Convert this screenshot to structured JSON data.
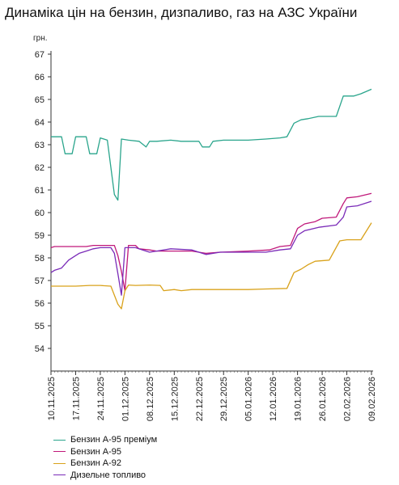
{
  "title": "Динаміка цін на бензин, дизпаливо, газ на АЗС України",
  "chart_data": {
    "type": "line",
    "title": "Динаміка цін на бензин, дизпаливо, газ на АЗС України",
    "ylabel": "грн.",
    "xlabel": "",
    "ylim": [
      53,
      67
    ],
    "yticks": [
      54,
      55,
      56,
      57,
      58,
      59,
      60,
      61,
      62,
      63,
      64,
      65,
      66,
      67
    ],
    "grid": false,
    "legend_position": "bottom-left",
    "xlim": [
      "2025-11-10",
      "2026-02-09"
    ],
    "xticks": [
      "10.11.2025",
      "17.11.2025",
      "24.11.2025",
      "01.12.2025",
      "08.12.2025",
      "15.12.2025",
      "22.12.2025",
      "29.12.2025",
      "05.01.2026",
      "12.01.2026",
      "19.01.2026",
      "26.01.2026",
      "02.02.2026",
      "09.02.2026"
    ],
    "xtick_dates": [
      "2025-11-10",
      "2025-11-17",
      "2025-11-24",
      "2025-12-01",
      "2025-12-08",
      "2025-12-15",
      "2025-12-22",
      "2025-12-29",
      "2026-01-05",
      "2026-01-12",
      "2026-01-19",
      "2026-01-26",
      "2026-02-02",
      "2026-02-09"
    ],
    "series": [
      {
        "name": "Бензин А-95 преміум",
        "color": "#2aa58c",
        "points": [
          [
            "2025-11-10",
            63.35
          ],
          [
            "2025-11-13",
            63.35
          ],
          [
            "2025-11-14",
            62.6
          ],
          [
            "2025-11-16",
            62.6
          ],
          [
            "2025-11-17",
            63.35
          ],
          [
            "2025-11-20",
            63.35
          ],
          [
            "2025-11-21",
            62.6
          ],
          [
            "2025-11-23",
            62.6
          ],
          [
            "2025-11-24",
            63.3
          ],
          [
            "2025-11-26",
            63.2
          ],
          [
            "2025-11-27",
            62.0
          ],
          [
            "2025-11-28",
            60.8
          ],
          [
            "2025-11-29",
            60.55
          ],
          [
            "2025-11-30",
            63.25
          ],
          [
            "2025-12-02",
            63.2
          ],
          [
            "2025-12-05",
            63.15
          ],
          [
            "2025-12-07",
            62.9
          ],
          [
            "2025-12-08",
            63.15
          ],
          [
            "2025-12-10",
            63.15
          ],
          [
            "2025-12-14",
            63.2
          ],
          [
            "2025-12-17",
            63.15
          ],
          [
            "2025-12-22",
            63.15
          ],
          [
            "2025-12-23",
            62.9
          ],
          [
            "2025-12-25",
            62.9
          ],
          [
            "2025-12-26",
            63.15
          ],
          [
            "2025-12-29",
            63.2
          ],
          [
            "2026-01-05",
            63.2
          ],
          [
            "2026-01-10",
            63.25
          ],
          [
            "2026-01-14",
            63.3
          ],
          [
            "2026-01-16",
            63.35
          ],
          [
            "2026-01-18",
            63.95
          ],
          [
            "2026-01-20",
            64.1
          ],
          [
            "2026-01-22",
            64.15
          ],
          [
            "2026-01-25",
            64.25
          ],
          [
            "2026-01-30",
            64.25
          ],
          [
            "2026-02-01",
            65.15
          ],
          [
            "2026-02-04",
            65.15
          ],
          [
            "2026-02-06",
            65.25
          ],
          [
            "2026-02-09",
            65.45
          ]
        ]
      },
      {
        "name": "Бензин А-95",
        "color": "#c0187a",
        "points": [
          [
            "2025-11-10",
            58.45
          ],
          [
            "2025-11-11",
            58.5
          ],
          [
            "2025-11-20",
            58.5
          ],
          [
            "2025-11-22",
            58.55
          ],
          [
            "2025-11-28",
            58.55
          ],
          [
            "2025-11-29",
            58.1
          ],
          [
            "2025-11-30",
            57.4
          ],
          [
            "2025-12-01",
            56.55
          ],
          [
            "2025-12-02",
            58.55
          ],
          [
            "2025-12-04",
            58.55
          ],
          [
            "2025-12-05",
            58.4
          ],
          [
            "2025-12-08",
            58.35
          ],
          [
            "2025-12-10",
            58.3
          ],
          [
            "2025-12-20",
            58.3
          ],
          [
            "2025-12-24",
            58.2
          ],
          [
            "2025-12-28",
            58.25
          ],
          [
            "2026-01-05",
            58.3
          ],
          [
            "2026-01-11",
            58.35
          ],
          [
            "2026-01-14",
            58.5
          ],
          [
            "2026-01-17",
            58.55
          ],
          [
            "2026-01-19",
            59.3
          ],
          [
            "2026-01-21",
            59.5
          ],
          [
            "2026-01-24",
            59.6
          ],
          [
            "2026-01-26",
            59.75
          ],
          [
            "2026-01-30",
            59.8
          ],
          [
            "2026-02-01",
            60.4
          ],
          [
            "2026-02-02",
            60.65
          ],
          [
            "2026-02-05",
            60.7
          ],
          [
            "2026-02-09",
            60.85
          ]
        ]
      },
      {
        "name": "Бензин А-92",
        "color": "#d9a21b",
        "points": [
          [
            "2025-11-10",
            56.75
          ],
          [
            "2025-11-14",
            56.75
          ],
          [
            "2025-11-17",
            56.75
          ],
          [
            "2025-11-21",
            56.78
          ],
          [
            "2025-11-24",
            56.78
          ],
          [
            "2025-11-27",
            56.75
          ],
          [
            "2025-11-29",
            55.95
          ],
          [
            "2025-11-30",
            55.75
          ],
          [
            "2025-12-01",
            56.55
          ],
          [
            "2025-12-02",
            56.8
          ],
          [
            "2025-12-04",
            56.78
          ],
          [
            "2025-12-08",
            56.8
          ],
          [
            "2025-12-11",
            56.78
          ],
          [
            "2025-12-12",
            56.55
          ],
          [
            "2025-12-15",
            56.6
          ],
          [
            "2025-12-17",
            56.55
          ],
          [
            "2025-12-20",
            56.6
          ],
          [
            "2025-12-28",
            56.6
          ],
          [
            "2026-01-05",
            56.6
          ],
          [
            "2026-01-09",
            56.62
          ],
          [
            "2026-01-16",
            56.65
          ],
          [
            "2026-01-18",
            57.35
          ],
          [
            "2026-01-20",
            57.5
          ],
          [
            "2026-01-22",
            57.7
          ],
          [
            "2026-01-24",
            57.85
          ],
          [
            "2026-01-28",
            57.9
          ],
          [
            "2026-01-31",
            58.75
          ],
          [
            "2026-02-02",
            58.8
          ],
          [
            "2026-02-06",
            58.8
          ],
          [
            "2026-02-09",
            59.55
          ]
        ]
      },
      {
        "name": "Дизельне топливо",
        "color": "#7a2bb8",
        "points": [
          [
            "2025-11-10",
            57.35
          ],
          [
            "2025-11-11",
            57.45
          ],
          [
            "2025-11-13",
            57.55
          ],
          [
            "2025-11-15",
            57.9
          ],
          [
            "2025-11-17",
            58.1
          ],
          [
            "2025-11-18",
            58.2
          ],
          [
            "2025-11-20",
            58.3
          ],
          [
            "2025-11-22",
            58.4
          ],
          [
            "2025-11-24",
            58.45
          ],
          [
            "2025-11-27",
            58.45
          ],
          [
            "2025-11-28",
            58.2
          ],
          [
            "2025-11-29",
            57.3
          ],
          [
            "2025-11-30",
            56.35
          ],
          [
            "2025-12-01",
            58.45
          ],
          [
            "2025-12-04",
            58.45
          ],
          [
            "2025-12-06",
            58.35
          ],
          [
            "2025-12-08",
            58.25
          ],
          [
            "2025-12-10",
            58.3
          ],
          [
            "2025-12-14",
            58.4
          ],
          [
            "2025-12-20",
            58.35
          ],
          [
            "2025-12-24",
            58.15
          ],
          [
            "2025-12-28",
            58.25
          ],
          [
            "2026-01-04",
            58.25
          ],
          [
            "2026-01-10",
            58.25
          ],
          [
            "2026-01-14",
            58.35
          ],
          [
            "2026-01-17",
            58.4
          ],
          [
            "2026-01-19",
            59.0
          ],
          [
            "2026-01-21",
            59.2
          ],
          [
            "2026-01-25",
            59.35
          ],
          [
            "2026-01-30",
            59.45
          ],
          [
            "2026-02-01",
            59.8
          ],
          [
            "2026-02-02",
            60.25
          ],
          [
            "2026-02-05",
            60.3
          ],
          [
            "2026-02-09",
            60.5
          ]
        ]
      }
    ]
  }
}
